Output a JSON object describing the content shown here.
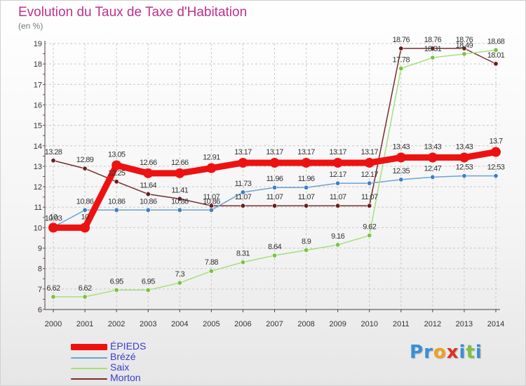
{
  "title": "Evolution du Taux de Taxe d'Habitation",
  "unit_label": "(en %)",
  "logo": {
    "text": "Proxiti",
    "letters": [
      {
        "ch": "P",
        "color": "#3a8fd6"
      },
      {
        "ch": "r",
        "color": "#3a8fd6"
      },
      {
        "ch": "o",
        "color": "#f0a020"
      },
      {
        "ch": "x",
        "color": "#e03020"
      },
      {
        "ch": "i",
        "color": "#3a8fd6"
      },
      {
        "ch": "t",
        "color": "#7cc242"
      },
      {
        "ch": "i",
        "color": "#3a8fd6"
      }
    ]
  },
  "chart_data": {
    "type": "line",
    "title": "Evolution du Taux de Taxe d'Habitation",
    "ylabel": "(en %)",
    "xlabel": "",
    "x": [
      2000,
      2001,
      2002,
      2003,
      2004,
      2005,
      2006,
      2007,
      2008,
      2009,
      2010,
      2011,
      2012,
      2013,
      2014
    ],
    "ylim": [
      6,
      19
    ],
    "yticks": [
      6,
      7,
      8,
      9,
      10,
      11,
      12,
      13,
      14,
      15,
      16,
      17,
      18,
      19
    ],
    "grid": "horizontal dashed",
    "legend_position": "bottom-left",
    "series": [
      {
        "name": "ÉPIEDS",
        "color": "#ee1111",
        "thick": true,
        "values": [
          10,
          10,
          13.05,
          12.66,
          12.66,
          12.91,
          13.17,
          13.17,
          13.17,
          13.17,
          13.17,
          13.43,
          13.43,
          13.43,
          13.7
        ],
        "labels": [
          "10",
          "10",
          "13.05",
          "12.66",
          "12.66",
          "12.91",
          "13.17",
          "13.17",
          "13.17",
          "13.17",
          "13.17",
          "13.43",
          "13.43",
          "13.43",
          "13.7"
        ]
      },
      {
        "name": "Brézé",
        "color": "#6aa3d6",
        "marker": "#3f7fc2",
        "values": [
          10.03,
          10.86,
          10.86,
          10.86,
          10.86,
          10.86,
          11.73,
          11.96,
          11.96,
          12.17,
          12.17,
          12.35,
          12.47,
          12.53,
          12.53
        ],
        "labels": [
          "10.03",
          "10.86",
          "10.86",
          "10.86",
          "10.86",
          "10.86",
          "11.73",
          "11.96",
          "11.96",
          "12.17",
          "12.17",
          "12.35",
          "12.47",
          "12.53",
          "12.53"
        ]
      },
      {
        "name": "Saix",
        "color": "#a6e07a",
        "marker": "#7cc242",
        "values": [
          6.62,
          6.62,
          6.95,
          6.95,
          7.3,
          7.88,
          8.31,
          8.64,
          8.9,
          9.16,
          9.62,
          17.78,
          18.31,
          18.49,
          18.68
        ],
        "labels": [
          "6.62",
          "6.62",
          "6.95",
          "6.95",
          "7.3",
          "7.88",
          "8.31",
          "8.64",
          "8.9",
          "9.16",
          "9.62",
          "17.78",
          "18.31",
          "18.49",
          "18.68"
        ]
      },
      {
        "name": "Morton",
        "color": "#7a2b2b",
        "marker": "#6a1e1e",
        "values": [
          13.28,
          12.89,
          12.25,
          11.64,
          11.41,
          11.07,
          11.07,
          11.07,
          11.07,
          11.07,
          11.07,
          18.76,
          18.76,
          18.76,
          18.01
        ],
        "labels": [
          "13.28",
          "12.89",
          "12.25",
          "11.64",
          "11.41",
          "11.07",
          "11.07",
          "11.07",
          "11.07",
          "11.07",
          "11.07",
          "18.76",
          "18.76",
          "18.76",
          "18.01"
        ]
      }
    ]
  }
}
